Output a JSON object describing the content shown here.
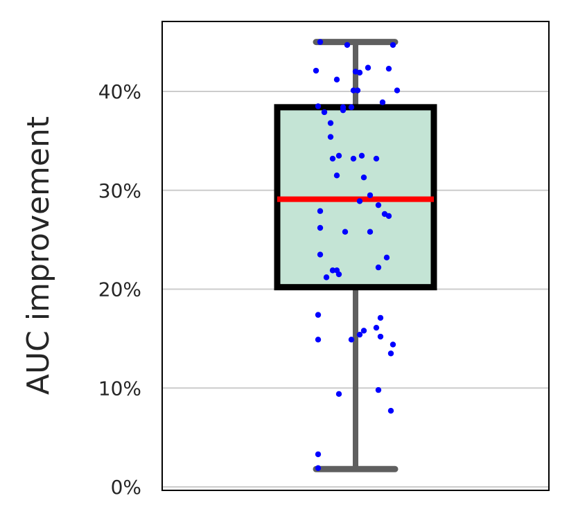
{
  "chart_data": {
    "type": "box",
    "ylabel": "AUC improvement",
    "ylim": [
      0,
      0.47
    ],
    "yticks": [
      {
        "value": 0.0,
        "label": "0%"
      },
      {
        "value": 0.1,
        "label": "10%"
      },
      {
        "value": 0.2,
        "label": "20%"
      },
      {
        "value": 0.3,
        "label": "30%"
      },
      {
        "value": 0.4,
        "label": "40%"
      }
    ],
    "grid": "horizontal",
    "box": {
      "whisker_low": 0.018,
      "q1": 0.202,
      "median": 0.291,
      "q3": 0.384,
      "whisker_high": 0.45
    },
    "points": [
      {
        "x": -0.17,
        "y": 0.45
      },
      {
        "x": -0.04,
        "y": 0.447
      },
      {
        "x": 0.18,
        "y": 0.447
      },
      {
        "x": -0.19,
        "y": 0.421
      },
      {
        "x": -0.09,
        "y": 0.412
      },
      {
        "x": 0.0,
        "y": 0.42
      },
      {
        "x": 0.02,
        "y": 0.419
      },
      {
        "x": 0.06,
        "y": 0.424
      },
      {
        "x": 0.16,
        "y": 0.423
      },
      {
        "x": -0.01,
        "y": 0.401
      },
      {
        "x": 0.01,
        "y": 0.401
      },
      {
        "x": 0.2,
        "y": 0.401
      },
      {
        "x": -0.18,
        "y": 0.385
      },
      {
        "x": -0.15,
        "y": 0.379
      },
      {
        "x": -0.06,
        "y": 0.384
      },
      {
        "x": -0.06,
        "y": 0.381
      },
      {
        "x": -0.02,
        "y": 0.384
      },
      {
        "x": 0.13,
        "y": 0.389
      },
      {
        "x": -0.12,
        "y": 0.368
      },
      {
        "x": -0.12,
        "y": 0.354
      },
      {
        "x": -0.08,
        "y": 0.335
      },
      {
        "x": -0.11,
        "y": 0.332
      },
      {
        "x": -0.01,
        "y": 0.332
      },
      {
        "x": 0.03,
        "y": 0.335
      },
      {
        "x": 0.1,
        "y": 0.332
      },
      {
        "x": -0.09,
        "y": 0.315
      },
      {
        "x": 0.04,
        "y": 0.313
      },
      {
        "x": 0.07,
        "y": 0.295
      },
      {
        "x": 0.02,
        "y": 0.289
      },
      {
        "x": 0.11,
        "y": 0.285
      },
      {
        "x": -0.17,
        "y": 0.279
      },
      {
        "x": 0.14,
        "y": 0.276
      },
      {
        "x": 0.16,
        "y": 0.274
      },
      {
        "x": -0.17,
        "y": 0.262
      },
      {
        "x": -0.05,
        "y": 0.258
      },
      {
        "x": 0.07,
        "y": 0.258
      },
      {
        "x": -0.17,
        "y": 0.235
      },
      {
        "x": 0.15,
        "y": 0.232
      },
      {
        "x": 0.11,
        "y": 0.222
      },
      {
        "x": -0.11,
        "y": 0.219
      },
      {
        "x": -0.09,
        "y": 0.219
      },
      {
        "x": -0.08,
        "y": 0.215
      },
      {
        "x": -0.14,
        "y": 0.212
      },
      {
        "x": -0.18,
        "y": 0.174
      },
      {
        "x": 0.12,
        "y": 0.171
      },
      {
        "x": 0.1,
        "y": 0.161
      },
      {
        "x": 0.04,
        "y": 0.158
      },
      {
        "x": 0.02,
        "y": 0.154
      },
      {
        "x": 0.12,
        "y": 0.152
      },
      {
        "x": -0.18,
        "y": 0.149
      },
      {
        "x": -0.02,
        "y": 0.149
      },
      {
        "x": 0.18,
        "y": 0.144
      },
      {
        "x": 0.17,
        "y": 0.135
      },
      {
        "x": 0.11,
        "y": 0.098
      },
      {
        "x": -0.08,
        "y": 0.094
      },
      {
        "x": 0.17,
        "y": 0.077
      },
      {
        "x": -0.18,
        "y": 0.033
      },
      {
        "x": -0.18,
        "y": 0.019
      }
    ],
    "colors": {
      "box_fill": "#c4e4d5",
      "box_edge": "#000000",
      "median": "#ff0000",
      "whisker": "#5f5f5f",
      "points": "#0000ff",
      "grid": "#cccccc",
      "text": "#262626"
    }
  }
}
